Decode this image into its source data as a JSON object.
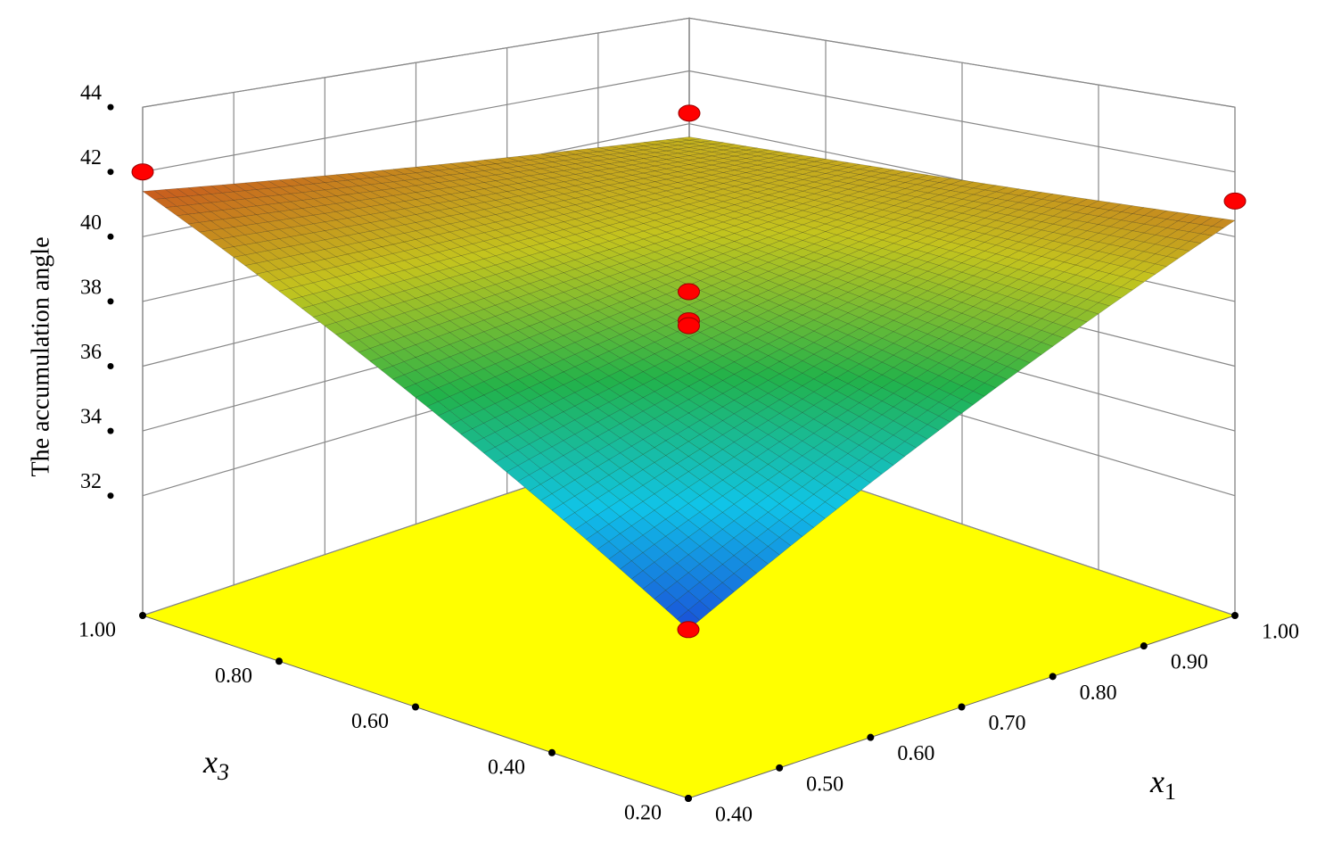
{
  "chart_data": {
    "type": "surface",
    "z_title": "The accumulation angle",
    "x1_title": {
      "base": "x",
      "sub": "1"
    },
    "x3_title": {
      "base": "x",
      "sub": "3"
    },
    "x1lim": [
      0.4,
      1.0
    ],
    "x3lim": [
      0.2,
      1.0
    ],
    "zlim": [
      28.3,
      44
    ],
    "x1ticks": [
      {
        "value": 0.4,
        "label": "0.40"
      },
      {
        "value": 0.5,
        "label": "0.50"
      },
      {
        "value": 0.6,
        "label": "0.60"
      },
      {
        "value": 0.7,
        "label": "0.70"
      },
      {
        "value": 0.8,
        "label": "0.80"
      },
      {
        "value": 0.9,
        "label": "0.90"
      },
      {
        "value": 1.0,
        "label": "1.00"
      }
    ],
    "x3ticks": [
      {
        "value": 0.2,
        "label": "0.20"
      },
      {
        "value": 0.4,
        "label": "0.40"
      },
      {
        "value": 0.6,
        "label": "0.60"
      },
      {
        "value": 0.8,
        "label": "0.80"
      },
      {
        "value": 1.0,
        "label": "1.00"
      }
    ],
    "zticks": [
      32,
      34,
      36,
      38,
      40,
      42,
      44
    ],
    "surface": {
      "x1": [
        0.4,
        0.7,
        1.0
      ],
      "x3": [
        0.2,
        0.6,
        1.0
      ],
      "z": [
        [
          32.7,
          37.05,
          41.4
        ],
        [
          36.6,
          38.5,
          40.45
        ],
        [
          40.5,
          40.0,
          39.5
        ]
      ]
    },
    "colormap": [
      "#1a4fd8",
      "#10c4e8",
      "#22b24a",
      "#c4c41e",
      "#c85a1e"
    ],
    "floor_color": "#ffff00",
    "wall_grid": true,
    "points": {
      "color": "#ff0000",
      "x1": [
        0.4,
        1.0,
        1.0,
        0.4,
        0.7,
        0.7,
        0.7
      ],
      "x3": [
        1.0,
        1.0,
        0.2,
        0.2,
        0.6,
        0.6,
        0.6
      ],
      "z": [
        42.0,
        40.4,
        41.1,
        32.7,
        38.3,
        37.4,
        37.25
      ]
    }
  }
}
